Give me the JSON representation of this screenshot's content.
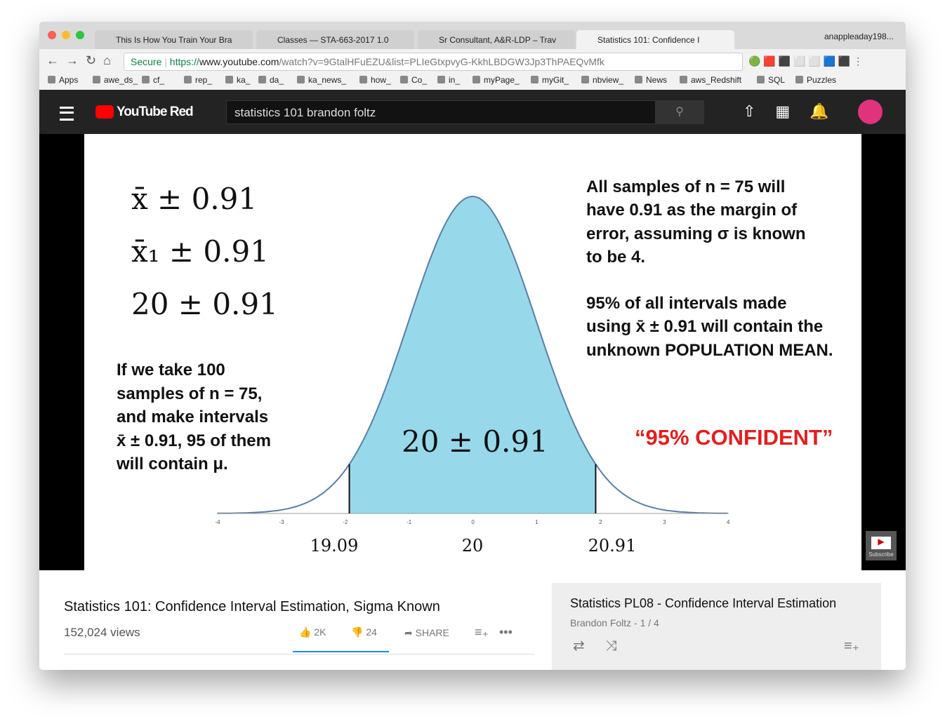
{
  "browser": {
    "tabs": [
      "This Is How You Train Your Bra",
      "Classes — STA-663-2017 1.0",
      "Sr Consultant, A&R-LDP – Trav",
      "Statistics 101: Confidence I"
    ],
    "profile": "anappleaday198...",
    "secure": "Secure",
    "url_scheme": "https://",
    "url_host": "www.youtube.com",
    "url_path": "/watch?v=9GtalHFuEZU&list=PLIeGtxpvyG-KkhLBDGW3Jp3ThPAEQvMfk",
    "bookmarks": [
      "Apps",
      "awe_ds_",
      "cf_",
      "rep_",
      "ka_",
      "da_",
      "ka_news_",
      "how_",
      "Co_",
      "in_",
      "myPage_",
      "myGit_",
      "nbview_",
      "News",
      "aws_Redshift",
      "SQL",
      "Puzzles"
    ]
  },
  "youtube": {
    "logo": "YouTube Red",
    "search": "statistics 101 brandon foltz"
  },
  "slide": {
    "formulas": [
      "x̄ ± 0.91",
      "x̄₁ ± 0.91",
      "20 ± 0.91"
    ],
    "left_text": [
      "If we take 100",
      "samples of n = 75,",
      "and make intervals",
      "x̄ ± 0.91, 95 of them",
      "will contain μ."
    ],
    "right_text": [
      "All samples of n = 75 will",
      "have 0.91 as the margin of",
      "error, assuming σ is known",
      "to be 4."
    ],
    "right_text2": [
      "95% of all intervals made",
      "using x̄ ± 0.91 will contain the",
      "unknown POPULATION MEAN."
    ],
    "confident": "“95% CONFIDENT”",
    "center_label": "20 ± 0.91",
    "axis_ticks": [
      "-4",
      "-3",
      "-2",
      "-1",
      "0",
      "1",
      "2",
      "3",
      "4"
    ],
    "axis_values": [
      "19.09",
      "20",
      "20.91"
    ],
    "subscribe": "Subscribe"
  },
  "video_info": {
    "title": "Statistics 101: Confidence Interval Estimation, Sigma Known",
    "views": "152,024 views",
    "likes": "2K",
    "dislikes": "24",
    "share": "SHARE"
  },
  "playlist": {
    "title": "Statistics PL08 - Confidence Interval Estimation",
    "meta": "Brandon Foltz - 1 / 4"
  }
}
